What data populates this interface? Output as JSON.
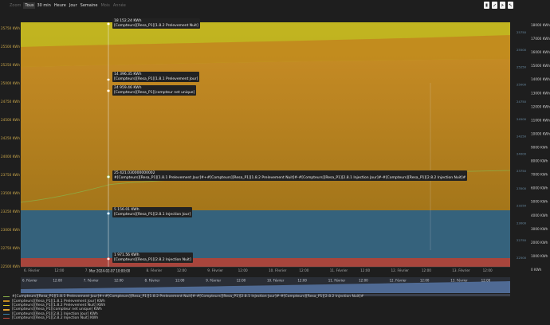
{
  "toolbar": {
    "zoom_label": "Zoom",
    "zoom_buttons": [
      {
        "label": "Tous",
        "disabled": false
      },
      {
        "label": "30 min",
        "disabled": false
      },
      {
        "label": "Heure",
        "disabled": false
      },
      {
        "label": "Jour",
        "disabled": false
      },
      {
        "label": "Semaine",
        "disabled": false
      },
      {
        "label": "Mois",
        "disabled": true
      },
      {
        "label": "Année",
        "disabled": true
      }
    ],
    "tools": [
      "export-icon",
      "draw-icon",
      "pin-icon",
      "fullscreen-icon"
    ]
  },
  "colors": {
    "background": "#1e1e1e",
    "yellow": "#b8a81a",
    "orange": "#c2851f",
    "orange_dark": "#a3701a",
    "blue": "#35627c",
    "red": "#a8453c"
  },
  "chart_data": {
    "type": "area",
    "x_labels": [
      "6. Février",
      "12:00",
      "7. Février",
      "12:00",
      "8. Février",
      "12:00",
      "9. Février",
      "12:00",
      "10. Février",
      "12:00",
      "11. Février",
      "12:00",
      "12. Février",
      "12:00",
      "13. Février",
      "12:00"
    ],
    "crosshair_label": "Mer 2024-02-07 10:00:00",
    "left_axis_ticks": [
      "25750 KWh",
      "25500 KWh",
      "25250 KWh",
      "25000 KWh",
      "24750 KWh",
      "24500 KWh",
      "24250 KWh",
      "24000 KWh",
      "23750 KWh",
      "23500 KWh",
      "23250 KWh",
      "23000 KWh",
      "22750 KWh",
      "22500 KWh"
    ],
    "right_axis_ticks": [
      "18000 KWh",
      "17000 KWh",
      "16000 KWh",
      "15000 KWh",
      "14000 KWh",
      "13000 KWh",
      "12000 KWh",
      "11000 KWh",
      "10000 KWh",
      "9000 KWh",
      "8000 KWh",
      "7000 KWh",
      "6000 KWh",
      "5000 KWh",
      "4000 KWh",
      "3000 KWh",
      "2000 KWh",
      "1000 KWh",
      "0 KWh"
    ],
    "mid_axis_ticks": [
      "25750",
      "25500",
      "25250",
      "25000",
      "24750",
      "24500",
      "24250",
      "24000",
      "23750",
      "23500",
      "23250",
      "23000",
      "22750",
      "22500"
    ],
    "navigator_labels": [
      "6. Février",
      "12:00",
      "7. Février",
      "12:00",
      "8. Février",
      "12:00",
      "9. Février",
      "12:00",
      "10. Février",
      "12:00",
      "11. Février",
      "12:00",
      "12. Février",
      "12:00",
      "13. Février",
      "12:00"
    ],
    "tooltips": [
      {
        "value": "18 152.24 KWh",
        "series": "[Compteurs][Resa_P1][1.8.2 Prelevement Nuit]"
      },
      {
        "value": "14 396.35 KWh",
        "series": "[Compteurs][Resa_P1][1.8.1 Prelevement Jour]"
      },
      {
        "value": "24 959.46 KWh",
        "series": "[Compteurs][Resa_P1][compteur net unique]"
      },
      {
        "value": "25 421.030000000002",
        "series": "#[Compteurs][Resa_P1][1.8.1 Prelevement Jour]#+#[Compteurs][Resa_P1][1.8.2 Prelevement Nuit]#-#[Compteurs][Resa_P1][2.8.1 Injection Jour]#-#[Compteurs][Resa_P1][2.8.2 Injection Nuit]#"
      },
      {
        "value": "5 156.01 KWh",
        "series": "[Compteurs][Resa_P1][2.8.1 Injection Jour]"
      },
      {
        "value": "1 971.56 KWh",
        "series": "[Compteurs][Resa_P1][2.8.2 Injection Nuit]"
      }
    ],
    "legend": [
      {
        "label": "#[Compteurs][Resa_P1][1.8.1 Prelevement Jour]#+#[Compteurs][Resa_P1][1.8.2 Prelevement Nuit]#-#[Compteurs][Resa_P1][2.8.1 Injection Jour]#-#[Compteurs][Resa_P1][2.8.2 Injection Nuit]#",
        "color": "#8ab34a"
      },
      {
        "label": "[Compteurs][Resa_P1][1.8.1 Prelevement Jour] KWh",
        "color": "#c28a20"
      },
      {
        "label": "[Compteurs][Resa_P1][1.8.2 Prelevement Nuit] KWh",
        "color": "#d8c21c"
      },
      {
        "label": "[Compteurs][Resa_P1][compteur net unique] KWh",
        "color": "#e0a030"
      },
      {
        "label": "[Compteurs][Resa_P1][2.8.1 Injection Jour] KWh",
        "color": "#3a7ea8"
      },
      {
        "label": "[Compteurs][Resa_P1][2.8.2 Injection Nuit] KWh",
        "color": "#c04a40"
      }
    ]
  }
}
